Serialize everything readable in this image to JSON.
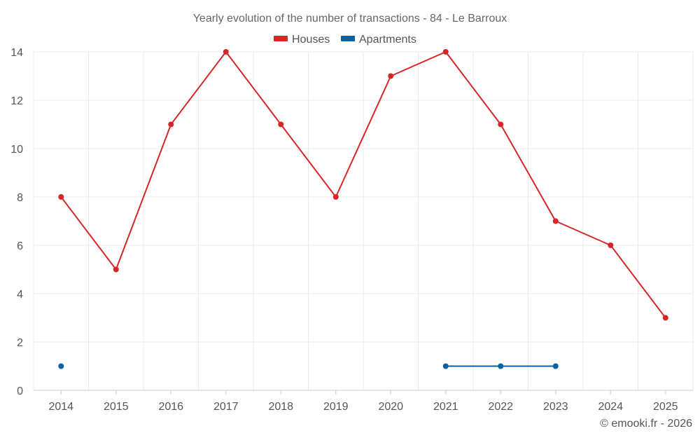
{
  "chart_data": {
    "type": "line",
    "title": "Yearly evolution of the number of transactions - 84 - Le Barroux",
    "xlabel": "",
    "ylabel": "",
    "categories": [
      "2014",
      "2015",
      "2016",
      "2017",
      "2018",
      "2019",
      "2020",
      "2021",
      "2022",
      "2023",
      "2024",
      "2025"
    ],
    "ylim": [
      0,
      14
    ],
    "yticks": [
      "0",
      "2",
      "4",
      "6",
      "8",
      "10",
      "12",
      "14"
    ],
    "grid": true,
    "legend_position": "top-center",
    "series": [
      {
        "name": "Houses",
        "color": "#d62728",
        "values": [
          8,
          5,
          11,
          14,
          11,
          8,
          13,
          14,
          11,
          7,
          6,
          3
        ]
      },
      {
        "name": "Apartments",
        "color": "#07639f",
        "values": [
          1,
          null,
          null,
          null,
          null,
          null,
          null,
          1,
          1,
          1,
          null,
          null
        ]
      }
    ],
    "credit": "© emooki.fr - 2026"
  }
}
